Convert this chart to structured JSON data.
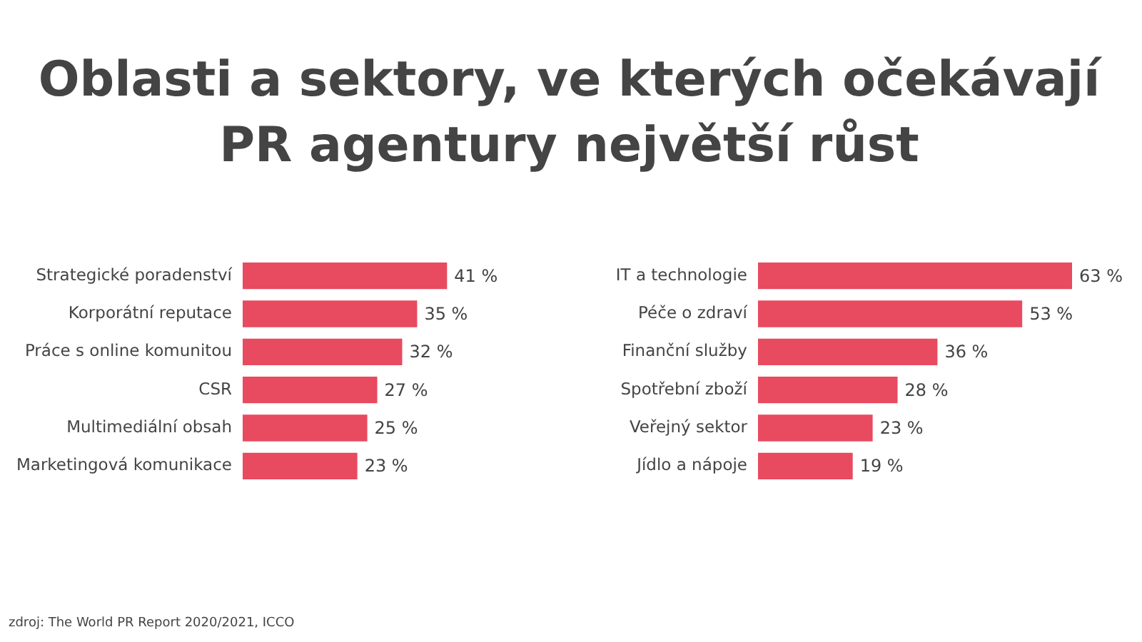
{
  "chart_data": [
    {
      "type": "bar",
      "orientation": "horizontal",
      "title": "Oblasti a sektory, ve kterých očekávají\nPR agentury největší růst",
      "categories": [
        "Strategické poradenství",
        "Korporátní reputace",
        "Práce s online komunitou",
        "CSR",
        "Multimediální obsah",
        "Marketingová komunikace"
      ],
      "values": [
        41,
        35,
        32,
        27,
        25,
        23
      ],
      "value_labels": [
        "41 %",
        "35 %",
        "32 %",
        "27 %",
        "25 %",
        "23 %"
      ],
      "color": "#e84a5f",
      "annotations": [
        "zdroj: The World PR Report 2020/2021, ICCO"
      ]
    },
    {
      "type": "bar",
      "orientation": "horizontal",
      "categories": [
        "IT a technologie",
        "Péče o zdraví",
        "Finanční služby",
        "Spotřební zboží",
        "Veřejný sektor",
        "Jídlo a nápoje"
      ],
      "values": [
        63,
        53,
        36,
        28,
        23,
        19
      ],
      "value_labels": [
        "63 %",
        "53 %",
        "36 %",
        "28 %",
        "23 %",
        "19 %"
      ],
      "color": "#e84a5f"
    }
  ]
}
